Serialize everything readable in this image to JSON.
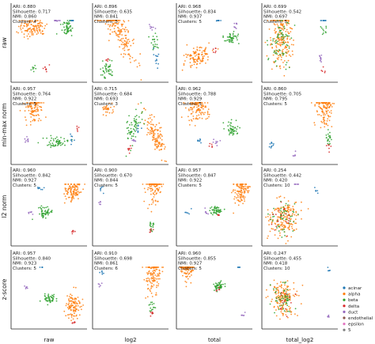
{
  "colors": {
    "acinar": "#1f77b4",
    "alpha": "#ff7f0e",
    "beta": "#2ca02c",
    "delta": "#d62728",
    "duct": "#9467bd",
    "endothelial": "#8c564b",
    "epsilon": "#e377c2",
    "5": "#7f7f7f"
  },
  "chart_data": {
    "type": "scatter",
    "grid": false,
    "legend_placement": "bottom-right",
    "row_labels": [
      "raw",
      "min-max norm",
      "l2 norm",
      "z-score"
    ],
    "col_labels": [
      "raw",
      "log2",
      "total",
      "total_log2"
    ],
    "legend": [
      "acinar",
      "alpha",
      "beta",
      "delta",
      "duct",
      "endothelial",
      "epsilon",
      "5"
    ],
    "panels": [
      {
        "row": 0,
        "col": 0,
        "lines": [
          "ARI: 0.880",
          "Silhouette: 0.717",
          "NMI: 0.860",
          "Clusters: 4"
        ],
        "clusters": [
          {
            "label": "acinar",
            "x": 0.81,
            "y": 0.12,
            "sx": 0.02,
            "sy": 0.05,
            "n": 10
          },
          {
            "label": "alpha",
            "x": 0.28,
            "y": 0.3,
            "sx": 0.09,
            "sy": 0.06,
            "n": 120
          },
          {
            "label": "beta",
            "x": 0.74,
            "y": 0.32,
            "sx": 0.04,
            "sy": 0.06,
            "n": 50
          },
          {
            "label": "duct",
            "x": 0.6,
            "y": 0.2,
            "sx": 0.02,
            "sy": 0.03,
            "n": 10
          },
          {
            "label": "delta",
            "x": 0.45,
            "y": 0.82,
            "sx": 0.02,
            "sy": 0.02,
            "n": 8
          },
          {
            "label": "beta",
            "x": 0.3,
            "y": 0.82,
            "sx": 0.02,
            "sy": 0.02,
            "n": 8
          }
        ]
      },
      {
        "row": 0,
        "col": 1,
        "lines": [
          "ARI: 0.896",
          "Silhouette: 0.635",
          "NMI: 0.841",
          "Clusters: 5"
        ],
        "clusters": [
          {
            "label": "alpha",
            "x": 0.35,
            "y": 0.35,
            "sx": 0.06,
            "sy": 0.22,
            "n": 170,
            "rot": -0.45
          },
          {
            "label": "beta",
            "x": 0.18,
            "y": 0.82,
            "sx": 0.05,
            "sy": 0.06,
            "n": 40
          },
          {
            "label": "beta",
            "x": 0.82,
            "y": 0.48,
            "sx": 0.03,
            "sy": 0.06,
            "n": 20
          },
          {
            "label": "acinar",
            "x": 0.85,
            "y": 0.7,
            "sx": 0.02,
            "sy": 0.05,
            "n": 12
          },
          {
            "label": "duct",
            "x": 0.78,
            "y": 0.3,
            "sx": 0.02,
            "sy": 0.03,
            "n": 8
          },
          {
            "label": "delta",
            "x": 0.2,
            "y": 0.72,
            "sx": 0.02,
            "sy": 0.02,
            "n": 5
          }
        ]
      },
      {
        "row": 0,
        "col": 2,
        "lines": [
          "ARI: 0.968",
          "Silhouette: 0.834",
          "NMI: 0.937",
          "Clusters: 5"
        ],
        "clusters": [
          {
            "label": "alpha",
            "x": 0.28,
            "y": 0.68,
            "sx": 0.09,
            "sy": 0.05,
            "n": 110,
            "rot": -0.5
          },
          {
            "label": "beta",
            "x": 0.72,
            "y": 0.43,
            "sx": 0.05,
            "sy": 0.04,
            "n": 45
          },
          {
            "label": "acinar",
            "x": 0.55,
            "y": 0.2,
            "sx": 0.02,
            "sy": 0.03,
            "n": 10
          },
          {
            "label": "duct",
            "x": 0.78,
            "y": 0.28,
            "sx": 0.02,
            "sy": 0.03,
            "n": 8
          },
          {
            "label": "delta",
            "x": 0.52,
            "y": 0.6,
            "sx": 0.02,
            "sy": 0.02,
            "n": 6
          }
        ]
      },
      {
        "row": 0,
        "col": 3,
        "lines": [
          "ARI: 0.699",
          "Silhouette: 0.542",
          "NMI: 0.697",
          "Clusters: 5"
        ],
        "clusters": [
          {
            "label": "alpha",
            "x": 0.25,
            "y": 0.45,
            "sx": 0.07,
            "sy": 0.2,
            "n": 190
          },
          {
            "label": "beta",
            "x": 0.25,
            "y": 0.45,
            "sx": 0.08,
            "sy": 0.18,
            "n": 70
          },
          {
            "label": "duct",
            "x": 0.78,
            "y": 0.7,
            "sx": 0.02,
            "sy": 0.04,
            "n": 10
          },
          {
            "label": "beta",
            "x": 0.82,
            "y": 0.35,
            "sx": 0.02,
            "sy": 0.04,
            "n": 10
          },
          {
            "label": "acinar",
            "x": 0.8,
            "y": 0.12,
            "sx": 0.02,
            "sy": 0.04,
            "n": 10
          },
          {
            "label": "delta",
            "x": 0.82,
            "y": 0.85,
            "sx": 0.02,
            "sy": 0.02,
            "n": 5
          }
        ]
      },
      {
        "row": 1,
        "col": 0,
        "lines": [
          "ARI: 0.957",
          "Silhouette: 0.764",
          "NMI: 0.922",
          "Clusters: 5"
        ],
        "clusters": [
          {
            "label": "alpha",
            "x": 0.3,
            "y": 0.28,
            "sx": 0.06,
            "sy": 0.1,
            "n": 110
          },
          {
            "label": "beta",
            "x": 0.62,
            "y": 0.72,
            "sx": 0.07,
            "sy": 0.03,
            "n": 55
          },
          {
            "label": "acinar",
            "x": 0.8,
            "y": 0.68,
            "sx": 0.02,
            "sy": 0.03,
            "n": 8
          },
          {
            "label": "duct",
            "x": 0.2,
            "y": 0.68,
            "sx": 0.02,
            "sy": 0.02,
            "n": 8
          },
          {
            "label": "delta",
            "x": 0.88,
            "y": 0.55,
            "sx": 0.015,
            "sy": 0.02,
            "n": 5
          }
        ]
      },
      {
        "row": 1,
        "col": 1,
        "lines": [
          "ARI: 0.715",
          "Silhouette: 0.684",
          "NMI: 0.693",
          "Clusters: 3"
        ],
        "clusters": [
          {
            "label": "alpha",
            "x": 0.82,
            "y": 0.62,
            "sx": 0.04,
            "sy": 0.15,
            "n": 120,
            "rot": -0.4
          },
          {
            "label": "alpha",
            "x": 0.2,
            "y": 0.3,
            "sx": 0.05,
            "sy": 0.03,
            "n": 30
          },
          {
            "label": "beta",
            "x": 0.55,
            "y": 0.5,
            "sx": 0.04,
            "sy": 0.14,
            "n": 60,
            "rot": 0.35
          },
          {
            "label": "delta",
            "x": 0.48,
            "y": 0.78,
            "sx": 0.02,
            "sy": 0.03,
            "n": 8
          },
          {
            "label": "duct",
            "x": 0.55,
            "y": 0.7,
            "sx": 0.02,
            "sy": 0.02,
            "n": 6
          },
          {
            "label": "acinar",
            "x": 0.6,
            "y": 0.55,
            "sx": 0.02,
            "sy": 0.04,
            "n": 8
          }
        ]
      },
      {
        "row": 1,
        "col": 2,
        "lines": [
          "ARI: 0.962",
          "Silhouette: 0.788",
          "NMI: 0.929",
          "Clusters: 5"
        ],
        "clusters": [
          {
            "label": "alpha",
            "x": 0.28,
            "y": 0.3,
            "sx": 0.07,
            "sy": 0.08,
            "n": 110
          },
          {
            "label": "beta",
            "x": 0.72,
            "y": 0.55,
            "sx": 0.04,
            "sy": 0.05,
            "n": 45
          },
          {
            "label": "acinar",
            "x": 0.3,
            "y": 0.7,
            "sx": 0.02,
            "sy": 0.02,
            "n": 8
          },
          {
            "label": "duct",
            "x": 0.52,
            "y": 0.72,
            "sx": 0.02,
            "sy": 0.02,
            "n": 8
          },
          {
            "label": "delta",
            "x": 0.45,
            "y": 0.75,
            "sx": 0.015,
            "sy": 0.015,
            "n": 5
          }
        ]
      },
      {
        "row": 1,
        "col": 3,
        "lines": [
          "ARI: 0.860",
          "Silhouette: 0.705",
          "NMI: 0.795",
          "Clusters: 5"
        ],
        "clusters": [
          {
            "label": "alpha",
            "x": 0.82,
            "y": 0.28,
            "sx": 0.05,
            "sy": 0.12,
            "n": 120
          },
          {
            "label": "beta",
            "x": 0.88,
            "y": 0.68,
            "sx": 0.02,
            "sy": 0.05,
            "n": 20
          },
          {
            "label": "delta",
            "x": 0.88,
            "y": 0.78,
            "sx": 0.015,
            "sy": 0.03,
            "n": 6
          },
          {
            "label": "acinar",
            "x": 0.12,
            "y": 0.75,
            "sx": 0.02,
            "sy": 0.03,
            "n": 10
          },
          {
            "label": "duct",
            "x": 0.45,
            "y": 0.88,
            "sx": 0.015,
            "sy": 0.02,
            "n": 5
          }
        ]
      },
      {
        "row": 2,
        "col": 0,
        "lines": [
          "ARI: 0.960",
          "Silhouette: 0.842",
          "NMI: 0.927",
          "Clusters: 5"
        ],
        "clusters": [
          {
            "label": "alpha",
            "x": 0.82,
            "y": 0.3,
            "sx": 0.06,
            "sy": 0.08,
            "n": 110
          },
          {
            "label": "beta",
            "x": 0.45,
            "y": 0.58,
            "sx": 0.05,
            "sy": 0.04,
            "n": 50
          },
          {
            "label": "acinar",
            "x": 0.38,
            "y": 0.28,
            "sx": 0.02,
            "sy": 0.02,
            "n": 8
          },
          {
            "label": "duct",
            "x": 0.25,
            "y": 0.58,
            "sx": 0.015,
            "sy": 0.02,
            "n": 6
          },
          {
            "label": "delta",
            "x": 0.82,
            "y": 0.82,
            "sx": 0.015,
            "sy": 0.02,
            "n": 6
          }
        ]
      },
      {
        "row": 2,
        "col": 1,
        "lines": [
          "ARI: 0.900",
          "Silhouette: 0.670",
          "NMI: 0.844",
          "Clusters: 5"
        ],
        "clusters": [
          {
            "label": "alpha",
            "x": 0.8,
            "y": 0.22,
            "sx": 0.05,
            "sy": 0.14,
            "n": 120
          },
          {
            "label": "beta",
            "x": 0.78,
            "y": 0.75,
            "sx": 0.02,
            "sy": 0.04,
            "n": 15
          },
          {
            "label": "delta",
            "x": 0.78,
            "y": 0.8,
            "sx": 0.015,
            "sy": 0.02,
            "n": 6
          },
          {
            "label": "acinar",
            "x": 0.12,
            "y": 0.28,
            "sx": 0.015,
            "sy": 0.02,
            "n": 6
          },
          {
            "label": "duct",
            "x": 0.1,
            "y": 0.45,
            "sx": 0.015,
            "sy": 0.02,
            "n": 5
          }
        ]
      },
      {
        "row": 2,
        "col": 2,
        "lines": [
          "ARI: 0.957",
          "Silhouette: 0.847",
          "NMI: 0.922",
          "Clusters: 5"
        ],
        "clusters": [
          {
            "label": "alpha",
            "x": 0.85,
            "y": 0.3,
            "sx": 0.05,
            "sy": 0.08,
            "n": 110
          },
          {
            "label": "beta",
            "x": 0.52,
            "y": 0.55,
            "sx": 0.04,
            "sy": 0.03,
            "n": 45
          },
          {
            "label": "acinar",
            "x": 0.15,
            "y": 0.58,
            "sx": 0.02,
            "sy": 0.02,
            "n": 6
          },
          {
            "label": "duct",
            "x": 0.38,
            "y": 0.58,
            "sx": 0.015,
            "sy": 0.02,
            "n": 6
          },
          {
            "label": "delta",
            "x": 0.55,
            "y": 0.6,
            "sx": 0.015,
            "sy": 0.015,
            "n": 5
          }
        ]
      },
      {
        "row": 2,
        "col": 3,
        "lines": [
          "ARI: 0.254",
          "Silhouette: 0.442",
          "NMI: 0.420",
          "Clusters: 10"
        ],
        "clusters": [
          {
            "label": "alpha",
            "x": 0.28,
            "y": 0.65,
            "sx": 0.1,
            "sy": 0.12,
            "n": 170
          },
          {
            "label": "beta",
            "x": 0.28,
            "y": 0.65,
            "sx": 0.09,
            "sy": 0.11,
            "n": 50
          },
          {
            "label": "delta",
            "x": 0.28,
            "y": 0.65,
            "sx": 0.08,
            "sy": 0.1,
            "n": 20
          },
          {
            "label": "duct",
            "x": 0.45,
            "y": 0.2,
            "sx": 0.02,
            "sy": 0.02,
            "n": 6
          },
          {
            "label": "acinar",
            "x": 0.72,
            "y": 0.3,
            "sx": 0.015,
            "sy": 0.02,
            "n": 5
          }
        ]
      },
      {
        "row": 3,
        "col": 0,
        "lines": [
          "ARI: 0.957",
          "Silhouette: 0.840",
          "NMI: 0.923",
          "Clusters: 5"
        ],
        "clusters": [
          {
            "label": "alpha",
            "x": 0.82,
            "y": 0.72,
            "sx": 0.05,
            "sy": 0.08,
            "n": 110
          },
          {
            "label": "beta",
            "x": 0.5,
            "y": 0.62,
            "sx": 0.04,
            "sy": 0.03,
            "n": 45
          },
          {
            "label": "acinar",
            "x": 0.38,
            "y": 0.15,
            "sx": 0.02,
            "sy": 0.02,
            "n": 6
          },
          {
            "label": "duct",
            "x": 0.2,
            "y": 0.48,
            "sx": 0.015,
            "sy": 0.02,
            "n": 6
          },
          {
            "label": "delta",
            "x": 0.82,
            "y": 0.92,
            "sx": 0.015,
            "sy": 0.015,
            "n": 5
          }
        ]
      },
      {
        "row": 3,
        "col": 1,
        "lines": [
          "ARI: 0.910",
          "Silhouette: 0.698",
          "NMI: 0.861",
          "Clusters: 6"
        ],
        "clusters": [
          {
            "label": "alpha",
            "x": 0.8,
            "y": 0.3,
            "sx": 0.05,
            "sy": 0.14,
            "n": 120
          },
          {
            "label": "beta",
            "x": 0.78,
            "y": 0.72,
            "sx": 0.02,
            "sy": 0.05,
            "n": 15
          },
          {
            "label": "delta",
            "x": 0.78,
            "y": 0.8,
            "sx": 0.015,
            "sy": 0.02,
            "n": 6
          },
          {
            "label": "acinar",
            "x": 0.12,
            "y": 0.28,
            "sx": 0.015,
            "sy": 0.02,
            "n": 6
          },
          {
            "label": "duct",
            "x": 0.1,
            "y": 0.45,
            "sx": 0.015,
            "sy": 0.02,
            "n": 5
          }
        ]
      },
      {
        "row": 3,
        "col": 2,
        "lines": [
          "ARI: 0.960",
          "Silhouette: 0.855",
          "NMI: 0.927",
          "Clusters: 5"
        ],
        "clusters": [
          {
            "label": "alpha",
            "x": 0.15,
            "y": 0.2,
            "sx": 0.05,
            "sy": 0.08,
            "n": 110
          },
          {
            "label": "beta",
            "x": 0.55,
            "y": 0.45,
            "sx": 0.04,
            "sy": 0.03,
            "n": 45
          },
          {
            "label": "acinar",
            "x": 0.82,
            "y": 0.12,
            "sx": 0.015,
            "sy": 0.02,
            "n": 6
          },
          {
            "label": "duct",
            "x": 0.88,
            "y": 0.82,
            "sx": 0.015,
            "sy": 0.02,
            "n": 6
          },
          {
            "label": "delta",
            "x": 0.55,
            "y": 0.5,
            "sx": 0.015,
            "sy": 0.015,
            "n": 5
          }
        ]
      },
      {
        "row": 3,
        "col": 3,
        "lines": [
          "ARI: 0.247",
          "Silhouette: 0.455",
          "NMI: 0.418",
          "Clusters: 10"
        ],
        "clusters": [
          {
            "label": "alpha",
            "x": 0.28,
            "y": 0.62,
            "sx": 0.08,
            "sy": 0.1,
            "n": 160
          },
          {
            "label": "beta",
            "x": 0.28,
            "y": 0.62,
            "sx": 0.07,
            "sy": 0.09,
            "n": 50
          },
          {
            "label": "delta",
            "x": 0.28,
            "y": 0.62,
            "sx": 0.06,
            "sy": 0.08,
            "n": 15
          },
          {
            "label": "duct",
            "x": 0.88,
            "y": 0.85,
            "sx": 0.015,
            "sy": 0.02,
            "n": 5
          },
          {
            "label": "acinar",
            "x": 0.88,
            "y": 0.25,
            "sx": 0.015,
            "sy": 0.02,
            "n": 5
          }
        ]
      }
    ]
  }
}
